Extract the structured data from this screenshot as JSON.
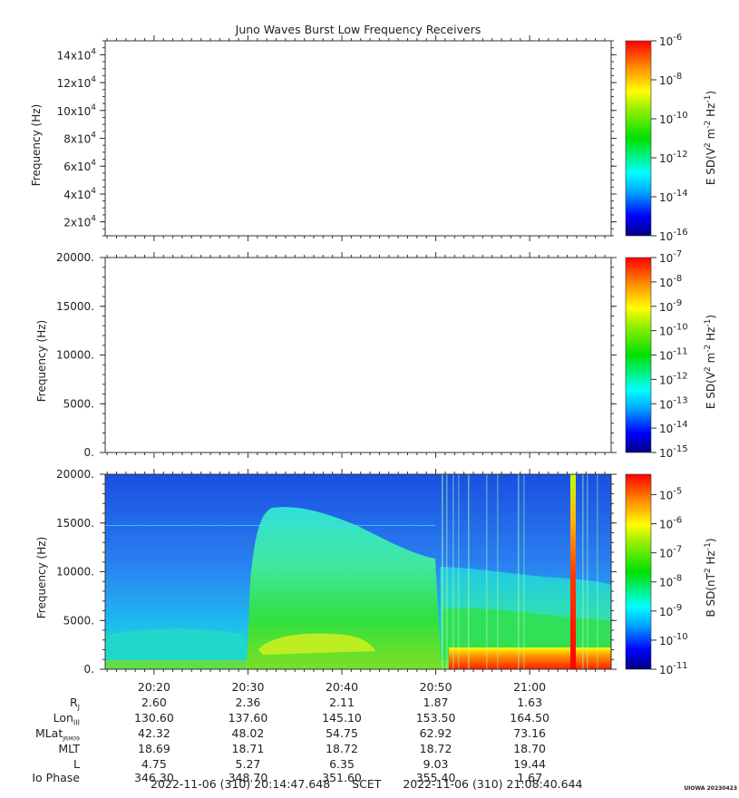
{
  "chart_data": [
    {
      "type": "heatmap",
      "title": "Juno Waves Burst Low Frequency Receivers",
      "ylabel": "Frequency (Hz)",
      "yticks": [
        "2x10^4",
        "4x10^4",
        "6x10^4",
        "8x10^4",
        "10x10^4",
        "12x10^4",
        "14x10^4"
      ],
      "yticks_values": [
        20000,
        40000,
        60000,
        80000,
        100000,
        120000,
        140000
      ],
      "ylim": [
        10000,
        150000
      ],
      "colorbar": {
        "label": "E SD (V^2 m^-2 Hz^-1)",
        "scale": "log",
        "range": [
          -16,
          -6
        ],
        "ticks": [
          "-6",
          "-8",
          "-10",
          "-12",
          "-14",
          "-16"
        ]
      },
      "data": "empty"
    },
    {
      "type": "heatmap",
      "ylabel": "Frequency (Hz)",
      "yticks": [
        "20000.",
        "15000.",
        "10000.",
        "5000.",
        "0."
      ],
      "ylim": [
        0,
        20000
      ],
      "colorbar": {
        "label": "E SD (V^2 m^-2 Hz^-1)",
        "scale": "log",
        "range": [
          -15,
          -7
        ],
        "ticks": [
          "-7",
          "-8",
          "-9",
          "-10",
          "-11",
          "-12",
          "-13",
          "-14",
          "-15"
        ]
      },
      "data": "empty"
    },
    {
      "type": "heatmap",
      "ylabel": "Frequency (Hz)",
      "yticks": [
        "20000.",
        "15000.",
        "10000.",
        "5000.",
        "0."
      ],
      "ylim": [
        0,
        20000
      ],
      "xticks": [
        "20:20",
        "20:30",
        "20:40",
        "20:50",
        "21:00"
      ],
      "xrange": [
        "2022-11-06 20:14:47.648",
        "2022-11-06 21:08:40.644"
      ],
      "colorbar": {
        "label": "B SD (nT^2 Hz^-1)",
        "scale": "log",
        "range": [
          -11,
          -4
        ],
        "ticks": [
          "-5",
          "-6",
          "-7",
          "-8",
          "-9",
          "-10",
          "-11"
        ]
      }
    }
  ],
  "ephemeris": {
    "labels": [
      "R",
      "Lon",
      "MLat",
      "MLT",
      "L",
      "Io Phase"
    ],
    "label_subs": [
      "J",
      "III",
      "JRM09",
      "",
      "",
      ""
    ],
    "columns": [
      [
        "2.60",
        "130.60",
        "42.32",
        "18.69",
        "4.75",
        "346.30"
      ],
      [
        "2.36",
        "137.60",
        "48.02",
        "18.71",
        "5.27",
        "348.70"
      ],
      [
        "2.11",
        "145.10",
        "54.75",
        "18.72",
        "6.35",
        "351.60"
      ],
      [
        "1.87",
        "153.50",
        "62.92",
        "18.72",
        "9.03",
        "355.40"
      ],
      [
        "1.63",
        "164.50",
        "73.16",
        "18.70",
        "19.44",
        "1.67"
      ]
    ]
  },
  "footer": {
    "start": "2022-11-06 (310) 20:14:47.648",
    "middle": "SCET",
    "end": "2022-11-06 (310) 21:08:40.644"
  },
  "credit": "UIOWA 20230423"
}
